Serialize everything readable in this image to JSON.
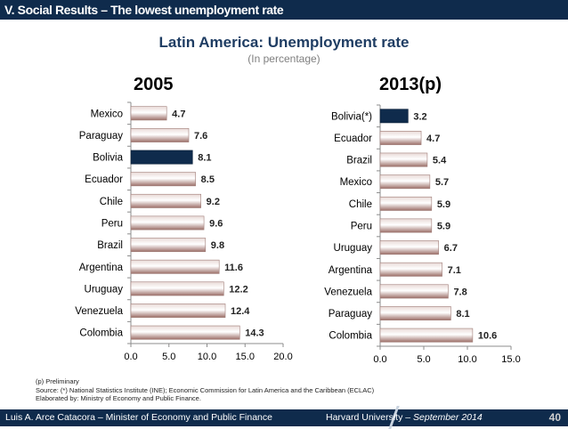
{
  "header": {
    "section_title": "V. Social Results – The lowest unemployment rate"
  },
  "main": {
    "title": "Latin America: Unemployment rate",
    "subtitle": "(In percentage)"
  },
  "notes": {
    "line1": "(p) Preliminary",
    "line2": "Source: (*) National Statistics Institute (INE); Economic Commission for Latin America and the Caribbean (ECLAC)",
    "line3": "Elaborated by: Ministry of Economy and Public Finance."
  },
  "footer": {
    "left_text": "Luis A. Arce Catacora – Minister of Economy and Public Finance",
    "right_text": "Harvard University",
    "right_date": " – September 2014",
    "page_number": "40"
  },
  "colors": {
    "bar_normal": "#c9a9a4",
    "bar_highlight": "#0f2b4c",
    "header_bg": "#0f2b4c"
  },
  "chart_data": [
    {
      "type": "bar",
      "orientation": "horizontal",
      "title": "2005",
      "categories": [
        "Mexico",
        "Paraguay",
        "Bolivia",
        "Ecuador",
        "Chile",
        "Peru",
        "Brazil",
        "Argentina",
        "Uruguay",
        "Venezuela",
        "Colombia"
      ],
      "values": [
        4.7,
        7.6,
        8.1,
        8.5,
        9.2,
        9.6,
        9.8,
        11.6,
        12.2,
        12.4,
        14.3
      ],
      "value_labels": [
        "4.7",
        "7.6",
        "8.1",
        "8.5",
        "9.2",
        "9.6",
        "9.8",
        "11.6",
        "12.2",
        "12.4",
        "14.3"
      ],
      "highlight": "Bolivia",
      "xlim": [
        0,
        20
      ],
      "xticks": [
        "0.0",
        "5.0",
        "10.0",
        "15.0",
        "20.0"
      ],
      "xlabel": "",
      "ylabel": ""
    },
    {
      "type": "bar",
      "orientation": "horizontal",
      "title": "2013(p)",
      "categories": [
        "Bolivia(*)",
        "Ecuador",
        "Brazil",
        "Mexico",
        "Chile",
        "Peru",
        "Uruguay",
        "Argentina",
        "Venezuela",
        "Paraguay",
        "Colombia"
      ],
      "values": [
        3.2,
        4.7,
        5.4,
        5.7,
        5.9,
        5.9,
        6.7,
        7.1,
        7.8,
        8.1,
        10.6
      ],
      "value_labels": [
        "3.2",
        "4.7",
        "5.4",
        "5.7",
        "5.9",
        "5.9",
        "6.7",
        "7.1",
        "7.8",
        "8.1",
        "10.6"
      ],
      "highlight": "Bolivia(*)",
      "xlim": [
        0,
        15
      ],
      "xticks": [
        "0.0",
        "5.0",
        "10.0",
        "15.0"
      ],
      "xlabel": "",
      "ylabel": ""
    }
  ]
}
